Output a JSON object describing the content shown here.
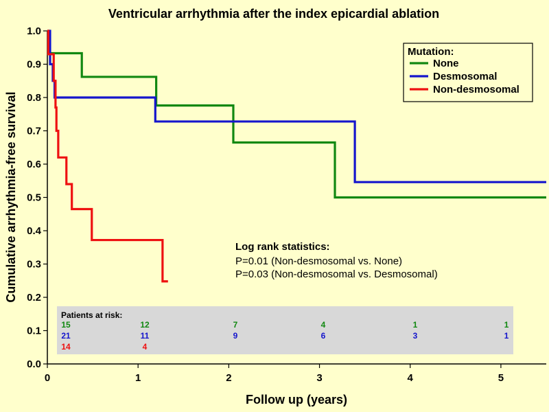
{
  "chart_data": {
    "type": "line",
    "subtype": "kaplan-meier step",
    "title": "Ventricular arrhythmia after the index epicardial ablation",
    "xlabel": "Follow up (years)",
    "ylabel": "Cumulative arrhythmia-free survival",
    "xlim": [
      0,
      5.5
    ],
    "ylim": [
      0,
      1.0
    ],
    "x_ticks": [
      "0",
      "1",
      "2",
      "3",
      "4",
      "5"
    ],
    "y_ticks": [
      "0.0",
      "0.1",
      "0.2",
      "0.3",
      "0.4",
      "0.5",
      "0.6",
      "0.7",
      "0.8",
      "0.9",
      "1.0"
    ],
    "grid": false,
    "legend": {
      "title": "Mutation:",
      "position": "top-right",
      "entries": [
        "None",
        "Desmosomal",
        "Non-desmosomal"
      ]
    },
    "series": [
      {
        "name": "None",
        "color": "#118811",
        "steps": [
          [
            0,
            1.0
          ],
          [
            0.02,
            0.933
          ],
          [
            0.38,
            0.862
          ],
          [
            1.2,
            0.776
          ],
          [
            2.05,
            0.665
          ],
          [
            3.17,
            0.5
          ],
          [
            5.5,
            0.5
          ]
        ]
      },
      {
        "name": "Desmosomal",
        "color": "#1515cc",
        "steps": [
          [
            0,
            1.0
          ],
          [
            0.03,
            0.9
          ],
          [
            0.06,
            0.85
          ],
          [
            0.08,
            0.8
          ],
          [
            1.19,
            0.728
          ],
          [
            3.39,
            0.546
          ],
          [
            5.5,
            0.546
          ]
        ]
      },
      {
        "name": "Non-desmosomal",
        "color": "#ee1111",
        "steps": [
          [
            0,
            1.0
          ],
          [
            0.01,
            0.93
          ],
          [
            0.07,
            0.85
          ],
          [
            0.09,
            0.77
          ],
          [
            0.1,
            0.7
          ],
          [
            0.12,
            0.62
          ],
          [
            0.21,
            0.54
          ],
          [
            0.27,
            0.465
          ],
          [
            0.49,
            0.372
          ],
          [
            1.27,
            0.248
          ],
          [
            1.33,
            0.248
          ]
        ]
      }
    ],
    "annotations": {
      "stats_title": "Log rank statistics:",
      "stats_lines": [
        "P=0.01 (Non-desmosomal vs. None)",
        "P=0.03 (Non-desmosomal vs. Desmosomal)"
      ]
    },
    "risk_table": {
      "title": "Patients at risk:",
      "rows": [
        {
          "series": "None",
          "color": "#118811",
          "values": [
            "15",
            "12",
            "7",
            "4",
            "1",
            "1"
          ]
        },
        {
          "series": "Desmosomal",
          "color": "#1515cc",
          "values": [
            "21",
            "11",
            "9",
            "6",
            "3",
            "1"
          ]
        },
        {
          "series": "Non-desmosomal",
          "color": "#ee1111",
          "values": [
            "14",
            "4"
          ]
        }
      ]
    }
  }
}
